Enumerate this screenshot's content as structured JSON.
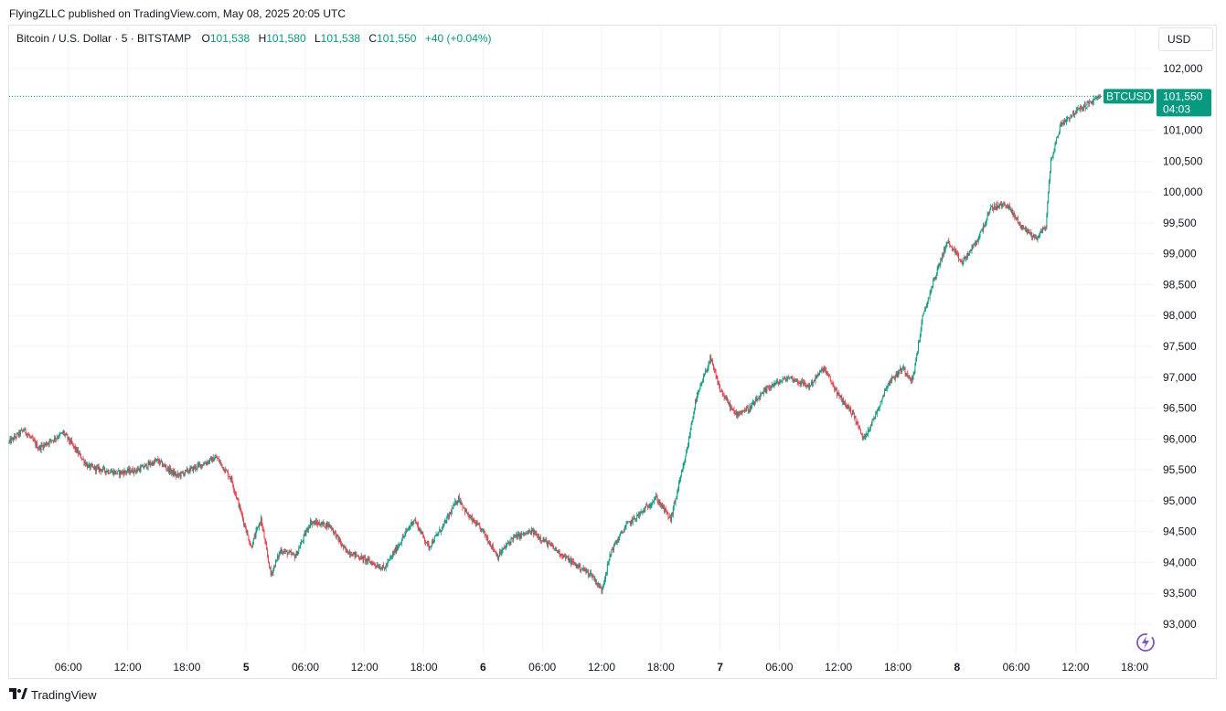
{
  "publish_line": "FlyingZLLC published on TradingView.com, May 08, 2025 20:05 UTC",
  "legend": {
    "symbol": "Bitcoin / U.S. Dollar · 5 · BITSTAMP",
    "open_label": "O",
    "open": "101,538",
    "high_label": "H",
    "high": "101,580",
    "low_label": "L",
    "low": "101,538",
    "close_label": "C",
    "close": "101,550",
    "change": "+40 (+0.04%)"
  },
  "currency": "USD",
  "brand": "TradingView",
  "price_tag": {
    "ticker": "BTCUSD",
    "price": "101,550",
    "countdown": "04:03"
  },
  "colors": {
    "up": "#089981",
    "down": "#f23645",
    "grid": "#f0f3fa",
    "text": "#131722",
    "tag": "#089981",
    "boost": "#7e57c2"
  },
  "icons": {
    "brand": "tradingview-logo-icon",
    "boost": "lightning-boost-icon"
  },
  "chart_data": {
    "type": "candlestick",
    "interval": "5",
    "y_axis_ticks": [
      "102,000",
      "101,500",
      "101,000",
      "100,500",
      "100,000",
      "99,500",
      "99,000",
      "98,500",
      "98,000",
      "97,500",
      "97,000",
      "96,500",
      "96,000",
      "95,500",
      "95,000",
      "94,500",
      "94,000",
      "93,500",
      "93,000"
    ],
    "ylim": [
      92500,
      102500
    ],
    "x_axis_ticks": [
      {
        "label": "06:00",
        "bold": false
      },
      {
        "label": "12:00",
        "bold": false
      },
      {
        "label": "18:00",
        "bold": false
      },
      {
        "label": "5",
        "bold": true
      },
      {
        "label": "06:00",
        "bold": false
      },
      {
        "label": "12:00",
        "bold": false
      },
      {
        "label": "18:00",
        "bold": false
      },
      {
        "label": "6",
        "bold": true
      },
      {
        "label": "06:00",
        "bold": false
      },
      {
        "label": "12:00",
        "bold": false
      },
      {
        "label": "18:00",
        "bold": false
      },
      {
        "label": "7",
        "bold": true
      },
      {
        "label": "06:00",
        "bold": false
      },
      {
        "label": "12:00",
        "bold": false
      },
      {
        "label": "18:00",
        "bold": false
      },
      {
        "label": "8",
        "bold": true
      },
      {
        "label": "06:00",
        "bold": false
      },
      {
        "label": "12:00",
        "bold": false
      },
      {
        "label": "18:00",
        "bold": false
      }
    ],
    "hours_start": 0,
    "hours_end": 115,
    "last_price": 101550,
    "price_path": [
      {
        "h": 0,
        "p": 95950
      },
      {
        "h": 1.5,
        "p": 96150
      },
      {
        "h": 3,
        "p": 95850
      },
      {
        "h": 5.5,
        "p": 96100
      },
      {
        "h": 8,
        "p": 95550
      },
      {
        "h": 11,
        "p": 95450
      },
      {
        "h": 13,
        "p": 95500
      },
      {
        "h": 15,
        "p": 95650
      },
      {
        "h": 17,
        "p": 95400
      },
      {
        "h": 19,
        "p": 95550
      },
      {
        "h": 21,
        "p": 95700
      },
      {
        "h": 22.5,
        "p": 95350
      },
      {
        "h": 23.5,
        "p": 94800
      },
      {
        "h": 24.5,
        "p": 94250
      },
      {
        "h": 25.5,
        "p": 94700
      },
      {
        "h": 26.5,
        "p": 93800
      },
      {
        "h": 27.5,
        "p": 94200
      },
      {
        "h": 29,
        "p": 94100
      },
      {
        "h": 30.5,
        "p": 94650
      },
      {
        "h": 32.5,
        "p": 94600
      },
      {
        "h": 34,
        "p": 94200
      },
      {
        "h": 36,
        "p": 94050
      },
      {
        "h": 38,
        "p": 93900
      },
      {
        "h": 39.5,
        "p": 94300
      },
      {
        "h": 41,
        "p": 94700
      },
      {
        "h": 42.5,
        "p": 94250
      },
      {
        "h": 44,
        "p": 94600
      },
      {
        "h": 45.5,
        "p": 95050
      },
      {
        "h": 46.5,
        "p": 94750
      },
      {
        "h": 48,
        "p": 94500
      },
      {
        "h": 49.5,
        "p": 94100
      },
      {
        "h": 51,
        "p": 94400
      },
      {
        "h": 53,
        "p": 94500
      },
      {
        "h": 55,
        "p": 94250
      },
      {
        "h": 57,
        "p": 94000
      },
      {
        "h": 59,
        "p": 93800
      },
      {
        "h": 60,
        "p": 93550
      },
      {
        "h": 61,
        "p": 94200
      },
      {
        "h": 62.5,
        "p": 94600
      },
      {
        "h": 64,
        "p": 94800
      },
      {
        "h": 65.5,
        "p": 95050
      },
      {
        "h": 67,
        "p": 94700
      },
      {
        "h": 68.5,
        "p": 95700
      },
      {
        "h": 69.5,
        "p": 96600
      },
      {
        "h": 71,
        "p": 97300
      },
      {
        "h": 72,
        "p": 96800
      },
      {
        "h": 73.5,
        "p": 96400
      },
      {
        "h": 75,
        "p": 96500
      },
      {
        "h": 77,
        "p": 96850
      },
      {
        "h": 79,
        "p": 97000
      },
      {
        "h": 81,
        "p": 96850
      },
      {
        "h": 82.5,
        "p": 97150
      },
      {
        "h": 84,
        "p": 96700
      },
      {
        "h": 85.5,
        "p": 96400
      },
      {
        "h": 86.5,
        "p": 96000
      },
      {
        "h": 87.5,
        "p": 96300
      },
      {
        "h": 89,
        "p": 96900
      },
      {
        "h": 90.5,
        "p": 97150
      },
      {
        "h": 91.5,
        "p": 96950
      },
      {
        "h": 92.5,
        "p": 97950
      },
      {
        "h": 93.5,
        "p": 98500
      },
      {
        "h": 95,
        "p": 99200
      },
      {
        "h": 96.5,
        "p": 98850
      },
      {
        "h": 98,
        "p": 99200
      },
      {
        "h": 99.5,
        "p": 99750
      },
      {
        "h": 101,
        "p": 99800
      },
      {
        "h": 102.5,
        "p": 99450
      },
      {
        "h": 104,
        "p": 99250
      },
      {
        "h": 105,
        "p": 99450
      },
      {
        "h": 105.5,
        "p": 100500
      },
      {
        "h": 106.5,
        "p": 101100
      },
      {
        "h": 108,
        "p": 101300
      },
      {
        "h": 109.5,
        "p": 101450
      },
      {
        "h": 110.5,
        "p": 101550
      }
    ]
  }
}
